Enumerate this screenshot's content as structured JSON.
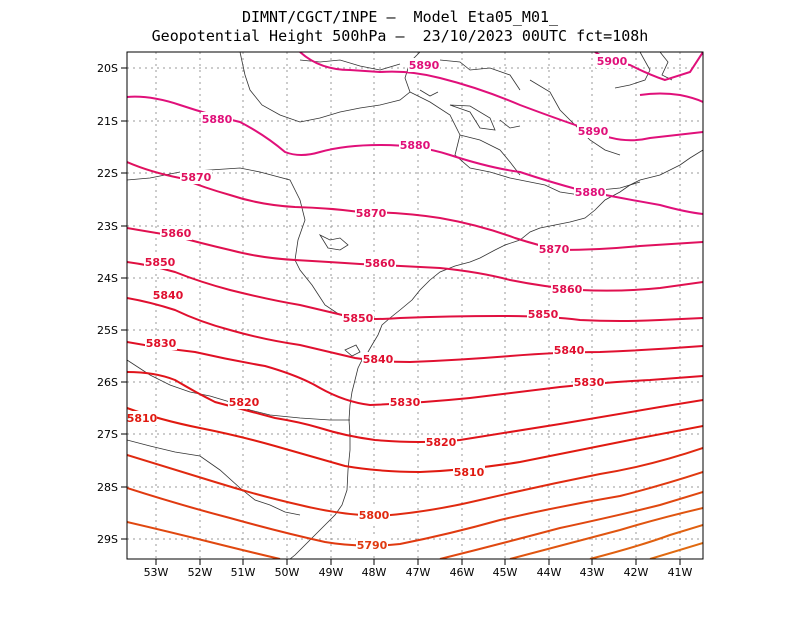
{
  "title_line1": "DIMNT/CGCT/INPE –  Model Eta05_M01_",
  "title_line2": "Geopotential Height 500hPa –  23/10/2023 00UTC fct=108h",
  "lat_labels": [
    "20S",
    "21S",
    "22S",
    "23S",
    "24S",
    "25S",
    "26S",
    "27S",
    "28S",
    "29S"
  ],
  "lon_labels": [
    "53W",
    "52W",
    "51W",
    "50W",
    "49W",
    "48W",
    "47W",
    "46W",
    "45W",
    "44W",
    "43W",
    "42W",
    "41W"
  ],
  "contour_labels": [
    {
      "text": "5900",
      "color": "#e0107a"
    },
    {
      "text": "5890",
      "color": "#e0107a"
    },
    {
      "text": "5890",
      "color": "#e0107a"
    },
    {
      "text": "5880",
      "color": "#e0107a"
    },
    {
      "text": "5880",
      "color": "#e0107a"
    },
    {
      "text": "5880",
      "color": "#e0107a"
    },
    {
      "text": "5870",
      "color": "#e0105e"
    },
    {
      "text": "5870",
      "color": "#e0105e"
    },
    {
      "text": "5870",
      "color": "#e0105e"
    },
    {
      "text": "5860",
      "color": "#e0104f"
    },
    {
      "text": "5860",
      "color": "#e0104f"
    },
    {
      "text": "5860",
      "color": "#e0104f"
    },
    {
      "text": "5850",
      "color": "#e01040"
    },
    {
      "text": "5850",
      "color": "#e01040"
    },
    {
      "text": "5850",
      "color": "#e01040"
    },
    {
      "text": "5840",
      "color": "#e01030"
    },
    {
      "text": "5840",
      "color": "#e01030"
    },
    {
      "text": "5840",
      "color": "#e01030"
    },
    {
      "text": "5830",
      "color": "#e01025"
    },
    {
      "text": "5830",
      "color": "#e01025"
    },
    {
      "text": "5830",
      "color": "#e01025"
    },
    {
      "text": "5820",
      "color": "#e0141a"
    },
    {
      "text": "5820",
      "color": "#e0141a"
    },
    {
      "text": "5810",
      "color": "#e01a10"
    },
    {
      "text": "5810",
      "color": "#e01a10"
    },
    {
      "text": "5800",
      "color": "#e02a10"
    },
    {
      "text": "5790",
      "color": "#e03a10"
    }
  ],
  "colors": {
    "frame": "#000000",
    "grid": "#999999",
    "coast": "#333333"
  }
}
